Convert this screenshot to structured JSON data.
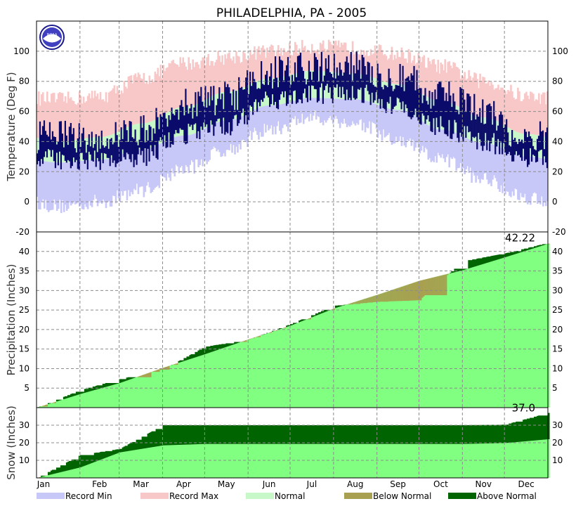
{
  "chart_data": {
    "type": "climate-summary",
    "title": "PHILADELPHIA, PA - 2005",
    "months": [
      "Jan",
      "Feb",
      "Mar",
      "Apr",
      "May",
      "Jun",
      "Jul",
      "Aug",
      "Sep",
      "Oct",
      "Nov",
      "Dec"
    ],
    "legend": [
      {
        "label": "Record Min",
        "color": "#c8c8f8"
      },
      {
        "label": "Record Max",
        "color": "#f8c8c8"
      },
      {
        "label": "Normal",
        "color": "#c8f8c8"
      },
      {
        "label": "Below Normal",
        "color": "#a8a050"
      },
      {
        "label": "Above Normal",
        "color": "#006400"
      }
    ],
    "panels": {
      "temperature": {
        "ylabel": "Temperature (Deg F)",
        "ylim": [
          -20,
          120
        ],
        "ticks": [
          -20,
          0,
          20,
          40,
          60,
          80,
          100
        ],
        "observed_color": "#0a0a6a",
        "normal_high_monthly": [
          40,
          43,
          52,
          63,
          73,
          82,
          87,
          85,
          78,
          67,
          56,
          45
        ],
        "normal_low_monthly": [
          26,
          28,
          35,
          44,
          54,
          64,
          69,
          68,
          61,
          48,
          39,
          30
        ],
        "record_high_monthly": [
          68,
          70,
          82,
          92,
          96,
          100,
          103,
          102,
          98,
          90,
          80,
          70
        ],
        "record_low_monthly": [
          -3,
          0,
          8,
          22,
          35,
          48,
          56,
          52,
          40,
          28,
          15,
          3
        ],
        "observed_high_monthly": [
          44,
          42,
          48,
          66,
          69,
          86,
          89,
          89,
          84,
          70,
          60,
          42
        ],
        "observed_low_monthly": [
          28,
          28,
          30,
          45,
          50,
          67,
          72,
          72,
          63,
          50,
          40,
          30
        ]
      },
      "precipitation": {
        "ylabel": "Precipitation (Inches)",
        "ylim": [
          0,
          45
        ],
        "ticks": [
          5,
          10,
          15,
          20,
          25,
          30,
          35,
          40
        ],
        "annotation": "42.22",
        "normal_cumulative_month_end": [
          3.5,
          6.3,
          10.2,
          13.7,
          17.5,
          21.0,
          25.4,
          28.9,
          32.5,
          35.2,
          38.5,
          42.0
        ],
        "actual_cumulative_month_end": [
          4.5,
          7.3,
          9.8,
          15.6,
          17.4,
          21.4,
          26.1,
          27.1,
          27.5,
          37.5,
          39.5,
          42.22
        ]
      },
      "snow": {
        "ylabel": "Snow (Inches)",
        "ylim": [
          0,
          40
        ],
        "ticks": [
          10,
          20,
          30
        ],
        "annotation": "37.0",
        "normal_cumulative_month_end": [
          6.0,
          14.5,
          18.5,
          19.3,
          19.3,
          19.3,
          19.3,
          19.3,
          19.3,
          19.3,
          19.8,
          22.0
        ],
        "actual_cumulative_month_end": [
          13.0,
          16.5,
          30.0,
          30.0,
          30.0,
          30.0,
          30.0,
          30.0,
          30.0,
          30.0,
          30.3,
          37.0
        ]
      }
    }
  }
}
